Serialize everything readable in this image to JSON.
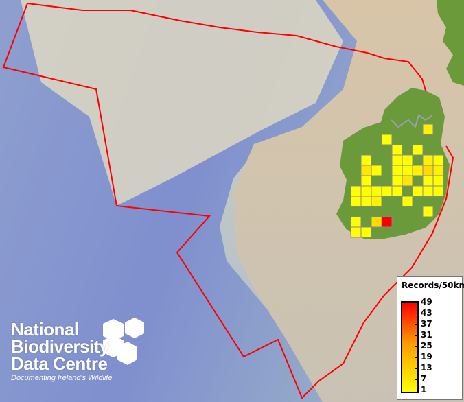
{
  "map": {
    "colors": {
      "boundary": "#ff0000",
      "land": "#6a9a3a",
      "cell_border": "#888888",
      "low": "#ffff00",
      "high": "#ff0000"
    },
    "grid_cells": [
      {
        "col": 7,
        "row": 0,
        "value": 2
      },
      {
        "col": 3,
        "row": 1,
        "value": 1
      },
      {
        "col": 4,
        "row": 2,
        "value": 1
      },
      {
        "col": 6,
        "row": 2,
        "value": 1
      },
      {
        "col": 1,
        "row": 3,
        "value": 1
      },
      {
        "col": 4,
        "row": 3,
        "value": 1
      },
      {
        "col": 5,
        "row": 3,
        "value": 1
      },
      {
        "col": 7,
        "row": 3,
        "value": 2
      },
      {
        "col": 8,
        "row": 3,
        "value": 1
      },
      {
        "col": 1,
        "row": 4,
        "value": 3
      },
      {
        "col": 2,
        "row": 4,
        "value": 1
      },
      {
        "col": 4,
        "row": 4,
        "value": 1
      },
      {
        "col": 5,
        "row": 4,
        "value": 1
      },
      {
        "col": 6,
        "row": 4,
        "value": 2
      },
      {
        "col": 7,
        "row": 4,
        "value": 4
      },
      {
        "col": 8,
        "row": 4,
        "value": 2
      },
      {
        "col": 1,
        "row": 5,
        "value": 1
      },
      {
        "col": 4,
        "row": 5,
        "value": 1
      },
      {
        "col": 5,
        "row": 5,
        "value": 3
      },
      {
        "col": 7,
        "row": 5,
        "value": 1
      },
      {
        "col": 8,
        "row": 5,
        "value": 1
      },
      {
        "col": 0,
        "row": 6,
        "value": 1
      },
      {
        "col": 1,
        "row": 6,
        "value": 1
      },
      {
        "col": 2,
        "row": 6,
        "value": 1
      },
      {
        "col": 3,
        "row": 6,
        "value": 1
      },
      {
        "col": 4,
        "row": 6,
        "value": 1
      },
      {
        "col": 6,
        "row": 6,
        "value": 1
      },
      {
        "col": 7,
        "row": 6,
        "value": 1
      },
      {
        "col": 8,
        "row": 6,
        "value": 1
      },
      {
        "col": 0,
        "row": 7,
        "value": 1
      },
      {
        "col": 1,
        "row": 7,
        "value": 1
      },
      {
        "col": 2,
        "row": 7,
        "value": 2
      },
      {
        "col": 5,
        "row": 7,
        "value": 1
      },
      {
        "col": 7,
        "row": 8,
        "value": 1
      },
      {
        "col": 0,
        "row": 9,
        "value": 1
      },
      {
        "col": 2,
        "row": 9,
        "value": 4
      },
      {
        "col": 3,
        "row": 9,
        "value": 49
      },
      {
        "col": 0,
        "row": 10,
        "value": 1
      },
      {
        "col": 1,
        "row": 10,
        "value": 1
      }
    ]
  },
  "legend": {
    "title": "Records/50km",
    "ticks": [
      "49",
      "43",
      "37",
      "31",
      "25",
      "19",
      "13",
      "7",
      "1"
    ]
  },
  "logo": {
    "lines": [
      "National",
      "Biodiversity",
      "Data Centre"
    ],
    "tagline": "Documenting Ireland's Wildlife"
  }
}
